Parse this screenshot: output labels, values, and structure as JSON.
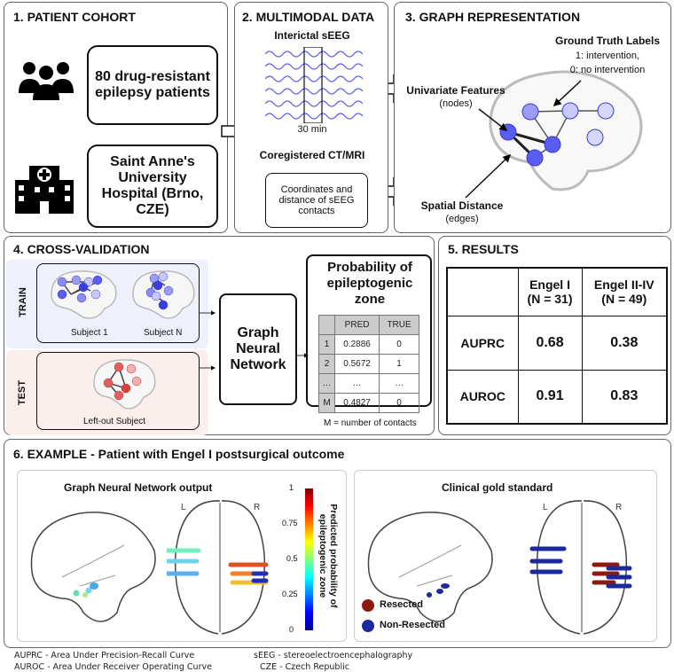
{
  "panel1": {
    "title": "1. PATIENT COHORT",
    "cohort": "80 drug-resistant epilepsy patients",
    "hospital": "Saint Anne's University Hospital (Brno, CZE)",
    "icons": [
      "people-icon",
      "hospital-icon"
    ]
  },
  "panel2": {
    "title": "2. MULTIMODAL DATA",
    "seeg": "Interictal sEEG",
    "duration": "30 min",
    "ctmri": "Coregistered CT/MRI",
    "coords": "Coordinates and distance of sEEG contacts"
  },
  "panel3": {
    "title": "3. GRAPH REPRESENTATION",
    "gt": "Ground Truth Labels",
    "gt1": "1: intervention,",
    "gt0": "0: no intervention",
    "uf": "Univariate Features",
    "nodes": "(nodes)",
    "sd": "Spatial Distance",
    "edges": "(edges)"
  },
  "panel4": {
    "title": "4. CROSS-VALIDATION",
    "train": "TRAIN",
    "test": "TEST",
    "s1": "Subject 1",
    "sn": "Subject N",
    "lo": "Left-out Subject",
    "gnn": "Graph Neural Network",
    "prob": "Probability of epileptogenic zone",
    "table": {
      "headers": [
        "",
        "PRED",
        "TRUE"
      ],
      "rows": [
        [
          "1",
          "0.2886",
          "0"
        ],
        [
          "2",
          "0.5672",
          "1"
        ],
        [
          "…",
          "…",
          "…"
        ],
        [
          "M",
          "0.4827",
          "0"
        ]
      ]
    },
    "note": "M = number of contacts"
  },
  "panel5": {
    "title": "5. RESULTS",
    "headers": [
      "",
      "Engel I\n(N = 31)",
      "Engel II-IV\n(N = 49)"
    ],
    "h1a": "Engel I",
    "h1b": "(N = 31)",
    "h2a": "Engel II-IV",
    "h2b": "(N = 49)",
    "rows": [
      {
        "metric": "AUPRC",
        "engel1": "0.68",
        "engel2": "0.38"
      },
      {
        "metric": "AUROC",
        "engel1": "0.91",
        "engel2": "0.83"
      }
    ]
  },
  "panel6": {
    "title": "6. EXAMPLE - Patient with Engel I postsurgical outcome",
    "gnn_title": "Graph Neural Network output",
    "gold_title": "Clinical gold standard",
    "L": "L",
    "R": "R",
    "colorbar": {
      "label": "Predicted probability of epileptogenic zone",
      "ticks": [
        "1",
        "0.75",
        "0.5",
        "0.25",
        "0"
      ]
    },
    "legend": [
      {
        "label": "Resected",
        "color": "#8b1a10"
      },
      {
        "label": "Non-Resected",
        "color": "#1a2a9a"
      }
    ]
  },
  "footer": {
    "auprc": "AUPRC - Area Under Precision-Recall Curve",
    "auroc": "AUROC - Area Under Receiver Operating Curve",
    "seeg": "sEEG - stereoelectroencephalography",
    "cze": "CZE - Czech Republic"
  },
  "colors": {
    "node": "#5a5ef0",
    "test_node": "#e06060",
    "train_bg": "#eef0fb",
    "test_bg": "#fbefee"
  }
}
